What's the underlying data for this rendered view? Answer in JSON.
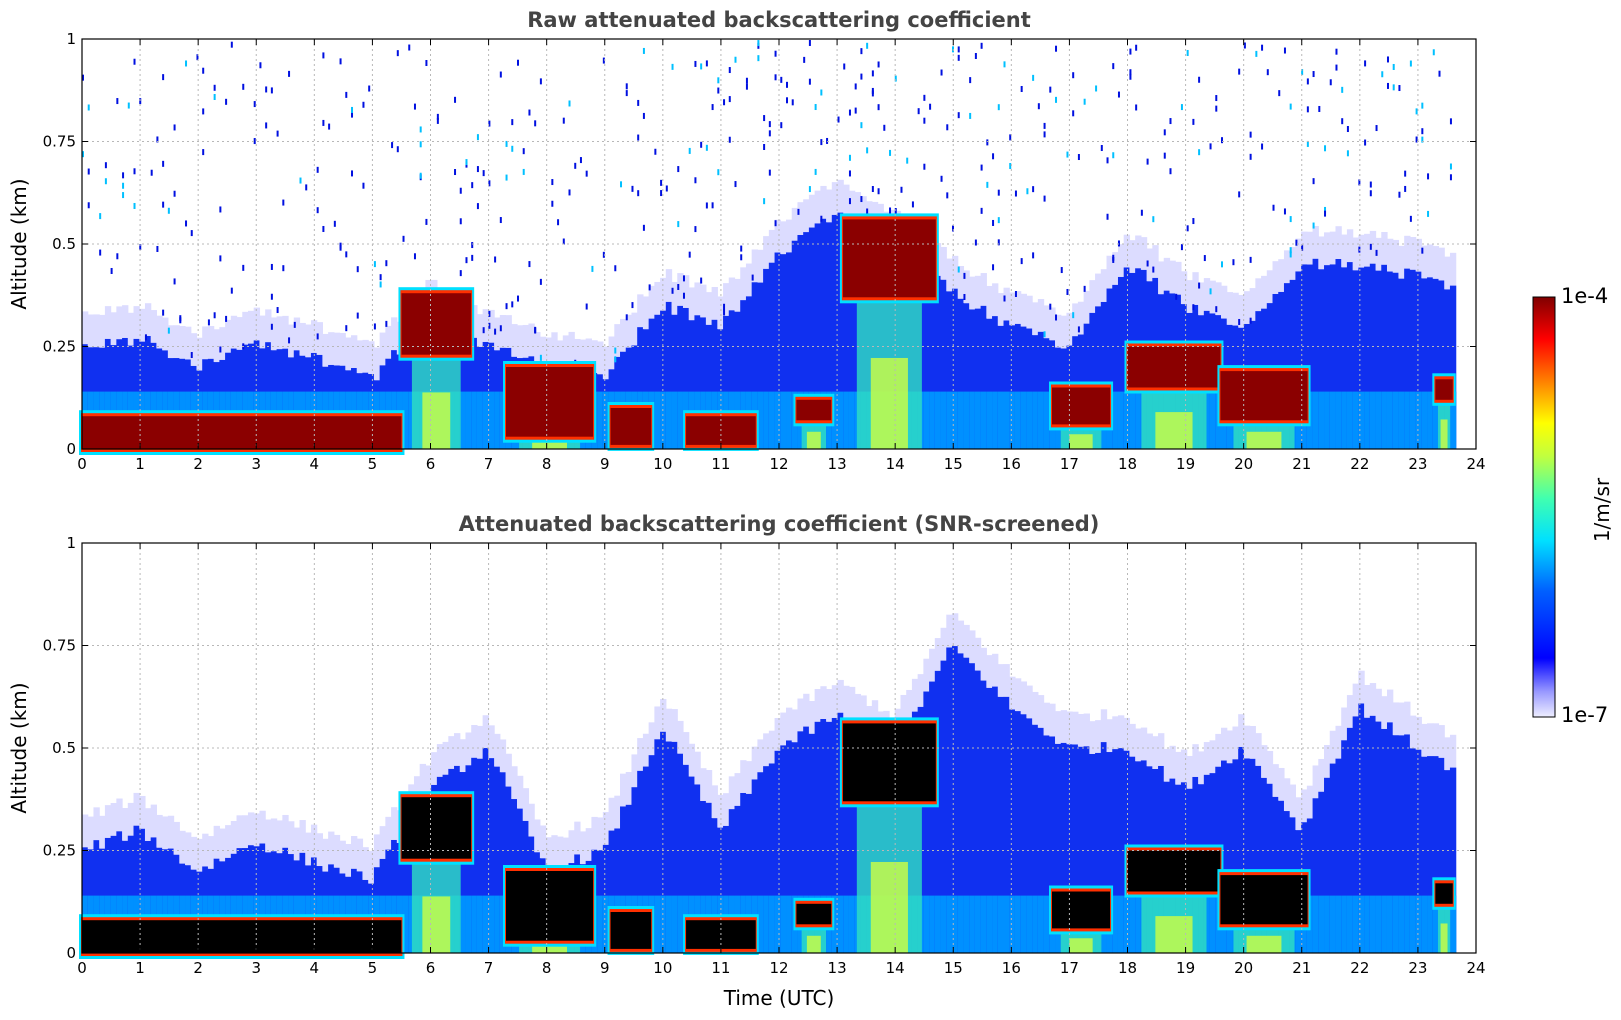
{
  "chart_data": [
    {
      "type": "heatmap",
      "title": "Raw attenuated backscattering coefficient",
      "xlabel": "",
      "ylabel": "Altitude (km)",
      "xlim": [
        0,
        24
      ],
      "ylim": [
        0,
        1
      ],
      "x_ticks": [
        "0",
        "1",
        "2",
        "3",
        "4",
        "5",
        "6",
        "7",
        "8",
        "9",
        "10",
        "11",
        "12",
        "13",
        "14",
        "15",
        "16",
        "17",
        "18",
        "19",
        "20",
        "21",
        "22",
        "23",
        "24"
      ],
      "y_ticks": [
        "0",
        "0.25",
        "0.5",
        "0.75",
        "1"
      ],
      "grid": true,
      "screened": false,
      "layers": [
        {
          "kind": "aerosol-haze-top",
          "x": [
            0,
            1,
            2,
            3,
            4,
            5,
            6,
            7,
            8,
            9,
            10,
            11,
            12,
            13,
            14,
            15,
            16,
            17,
            18,
            19,
            20,
            21,
            22,
            23,
            23.6
          ],
          "y": [
            0.25,
            0.27,
            0.2,
            0.26,
            0.22,
            0.17,
            0.33,
            0.25,
            0.2,
            0.18,
            0.35,
            0.3,
            0.47,
            0.58,
            0.5,
            0.38,
            0.3,
            0.25,
            0.45,
            0.35,
            0.3,
            0.45,
            0.45,
            0.42,
            0.4
          ]
        },
        {
          "kind": "dense-layer",
          "x_start": 0,
          "x_end": 5.5,
          "y_bottom": 0.0,
          "y_top": 0.08
        },
        {
          "kind": "dense-layer",
          "x_start": 5.5,
          "x_end": 6.7,
          "y_bottom": 0.23,
          "y_top": 0.38
        },
        {
          "kind": "dense-layer",
          "x_start": 7.3,
          "x_end": 8.8,
          "y_bottom": 0.03,
          "y_top": 0.2
        },
        {
          "kind": "dense-layer",
          "x_start": 9.1,
          "x_end": 9.8,
          "y_bottom": 0.01,
          "y_top": 0.1
        },
        {
          "kind": "dense-layer",
          "x_start": 10.4,
          "x_end": 11.6,
          "y_bottom": 0.01,
          "y_top": 0.08
        },
        {
          "kind": "dense-layer",
          "x_start": 12.3,
          "x_end": 12.9,
          "y_bottom": 0.07,
          "y_top": 0.12
        },
        {
          "kind": "dense-layer",
          "x_start": 13.1,
          "x_end": 14.7,
          "y_bottom": 0.37,
          "y_top": 0.56
        },
        {
          "kind": "dense-layer",
          "x_start": 16.7,
          "x_end": 17.7,
          "y_bottom": 0.06,
          "y_top": 0.15
        },
        {
          "kind": "dense-layer",
          "x_start": 18.0,
          "x_end": 19.6,
          "y_bottom": 0.15,
          "y_top": 0.25
        },
        {
          "kind": "dense-layer",
          "x_start": 19.6,
          "x_end": 21.1,
          "y_bottom": 0.07,
          "y_top": 0.19
        },
        {
          "kind": "dense-layer",
          "x_start": 23.3,
          "x_end": 23.6,
          "y_bottom": 0.12,
          "y_top": 0.17
        }
      ]
    },
    {
      "type": "heatmap",
      "title": "Attenuated backscattering coefficient (SNR-screened)",
      "xlabel": "Time (UTC)",
      "ylabel": "Altitude (km)",
      "xlim": [
        0,
        24
      ],
      "ylim": [
        0,
        1
      ],
      "x_ticks": [
        "0",
        "1",
        "2",
        "3",
        "4",
        "5",
        "6",
        "7",
        "8",
        "9",
        "10",
        "11",
        "12",
        "13",
        "14",
        "15",
        "16",
        "17",
        "18",
        "19",
        "20",
        "21",
        "22",
        "23",
        "24"
      ],
      "y_ticks": [
        "0",
        "0.25",
        "0.5",
        "0.75",
        "1"
      ],
      "grid": true,
      "screened": true,
      "layers": [
        {
          "kind": "aerosol-haze-top",
          "x": [
            0,
            1,
            2,
            3,
            4,
            5,
            6,
            7,
            8,
            9,
            10,
            11,
            12,
            13,
            14,
            15,
            16,
            17,
            18,
            19,
            20,
            21,
            22,
            23,
            23.6
          ],
          "y": [
            0.25,
            0.3,
            0.2,
            0.27,
            0.22,
            0.18,
            0.4,
            0.5,
            0.2,
            0.25,
            0.55,
            0.3,
            0.5,
            0.58,
            0.5,
            0.75,
            0.6,
            0.5,
            0.5,
            0.4,
            0.5,
            0.3,
            0.6,
            0.5,
            0.45
          ]
        },
        {
          "kind": "dense-layer",
          "x_start": 0,
          "x_end": 5.5,
          "y_bottom": 0.0,
          "y_top": 0.08
        },
        {
          "kind": "dense-layer",
          "x_start": 5.5,
          "x_end": 6.7,
          "y_bottom": 0.23,
          "y_top": 0.38
        },
        {
          "kind": "dense-layer",
          "x_start": 7.3,
          "x_end": 8.8,
          "y_bottom": 0.03,
          "y_top": 0.2
        },
        {
          "kind": "dense-layer",
          "x_start": 9.1,
          "x_end": 9.8,
          "y_bottom": 0.01,
          "y_top": 0.1
        },
        {
          "kind": "dense-layer",
          "x_start": 10.4,
          "x_end": 11.6,
          "y_bottom": 0.01,
          "y_top": 0.08
        },
        {
          "kind": "dense-layer",
          "x_start": 12.3,
          "x_end": 12.9,
          "y_bottom": 0.07,
          "y_top": 0.12
        },
        {
          "kind": "dense-layer",
          "x_start": 13.1,
          "x_end": 14.7,
          "y_bottom": 0.37,
          "y_top": 0.56
        },
        {
          "kind": "dense-layer",
          "x_start": 16.7,
          "x_end": 17.7,
          "y_bottom": 0.06,
          "y_top": 0.15
        },
        {
          "kind": "dense-layer",
          "x_start": 18.0,
          "x_end": 19.6,
          "y_bottom": 0.15,
          "y_top": 0.25
        },
        {
          "kind": "dense-layer",
          "x_start": 19.6,
          "x_end": 21.1,
          "y_bottom": 0.07,
          "y_top": 0.19
        },
        {
          "kind": "dense-layer",
          "x_start": 23.3,
          "x_end": 23.6,
          "y_bottom": 0.12,
          "y_top": 0.17
        }
      ]
    }
  ],
  "colorbar": {
    "label": "1/m/sr",
    "max_label": "1e-4",
    "min_label": "1e-7",
    "colormap": "jet",
    "scale": "log",
    "range": [
      1e-07,
      0.0001
    ],
    "colors": [
      "#e8e8ff",
      "#0000ff",
      "#0080ff",
      "#00ffff",
      "#80ff80",
      "#ffff00",
      "#ff8000",
      "#ff0000",
      "#800000"
    ],
    "screened_color": "#000000"
  }
}
